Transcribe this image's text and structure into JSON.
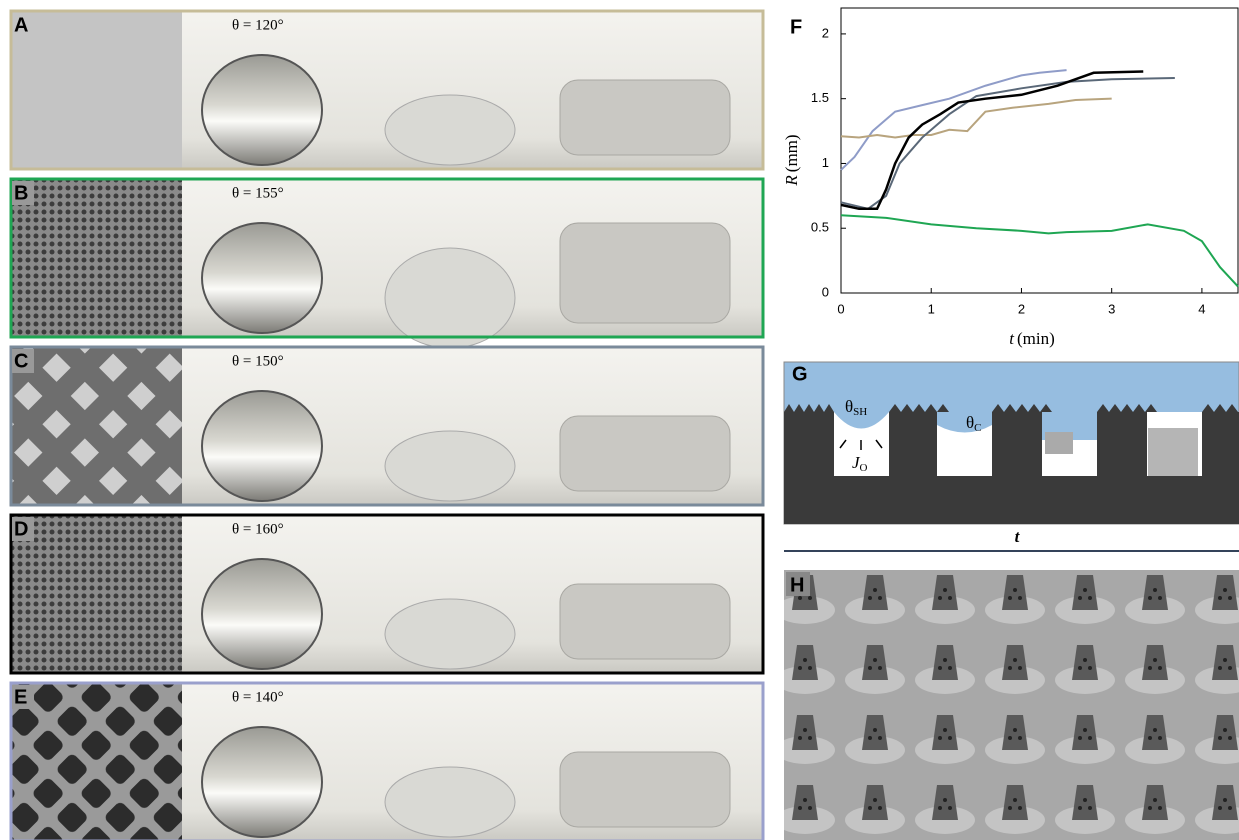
{
  "panels": [
    {
      "label": "A",
      "theta": "θ = 120°",
      "border": "#c6bc98"
    },
    {
      "label": "B",
      "theta": "θ = 155°",
      "border": "#1fa653"
    },
    {
      "label": "C",
      "theta": "θ = 150°",
      "border": "#7a8a9a"
    },
    {
      "label": "D",
      "theta": "θ = 160°",
      "border": "#000000"
    },
    {
      "label": "E",
      "theta": "θ = 140°",
      "border": "#9aa0cc"
    }
  ],
  "chart_data": {
    "type": "line",
    "label": "F",
    "xlabel": {
      "symbol": "t",
      "unit": "(min)"
    },
    "ylabel": {
      "symbol": "R",
      "unit": "(mm)"
    },
    "xlim": [
      0,
      4.4
    ],
    "ylim": [
      0,
      2.2
    ],
    "xticks": [
      0,
      1,
      2,
      3,
      4
    ],
    "yticks": [
      0,
      0.5,
      1,
      1.5,
      2
    ],
    "series": [
      {
        "color": "#8f9cc8",
        "x": [
          0,
          0.15,
          0.35,
          0.6,
          0.9,
          1.2,
          1.6,
          2.0,
          2.2,
          2.5
        ],
        "values": [
          0.95,
          1.05,
          1.25,
          1.4,
          1.45,
          1.5,
          1.6,
          1.68,
          1.7,
          1.72
        ]
      },
      {
        "color": "#b8a47e",
        "x": [
          0,
          0.2,
          0.4,
          0.6,
          0.8,
          1.0,
          1.2,
          1.4,
          1.6,
          1.9,
          2.3,
          2.6,
          3.0
        ],
        "values": [
          1.21,
          1.2,
          1.22,
          1.2,
          1.22,
          1.22,
          1.26,
          1.25,
          1.4,
          1.43,
          1.46,
          1.49,
          1.5
        ]
      },
      {
        "color": "#5a6878",
        "x": [
          0,
          0.3,
          0.5,
          0.65,
          0.9,
          1.2,
          1.5,
          2.0,
          2.5,
          3.0,
          3.7
        ],
        "values": [
          0.7,
          0.65,
          0.75,
          1.0,
          1.2,
          1.38,
          1.52,
          1.58,
          1.63,
          1.65,
          1.66
        ]
      },
      {
        "color": "#000000",
        "x": [
          0,
          0.2,
          0.4,
          0.5,
          0.6,
          0.75,
          0.9,
          1.1,
          1.3,
          1.6,
          2.0,
          2.4,
          2.8,
          3.35
        ],
        "values": [
          0.68,
          0.65,
          0.65,
          0.8,
          1.0,
          1.2,
          1.3,
          1.38,
          1.47,
          1.5,
          1.53,
          1.6,
          1.7,
          1.71
        ]
      },
      {
        "color": "#1fa653",
        "x": [
          0,
          0.5,
          1.0,
          1.5,
          2.0,
          2.3,
          2.5,
          3.0,
          3.4,
          3.8,
          4.0,
          4.2,
          4.4
        ],
        "values": [
          0.6,
          0.58,
          0.53,
          0.5,
          0.48,
          0.46,
          0.47,
          0.48,
          0.53,
          0.48,
          0.4,
          0.2,
          0.05
        ]
      }
    ]
  },
  "schematic": {
    "label": "G",
    "theta_sh": {
      "symbol": "θ",
      "sub": "SH"
    },
    "theta_c": {
      "symbol": "θ",
      "sub": "C"
    },
    "flux": {
      "symbol": "J",
      "sub": "O"
    },
    "axis": "t"
  },
  "micrograph": {
    "label": "H"
  }
}
